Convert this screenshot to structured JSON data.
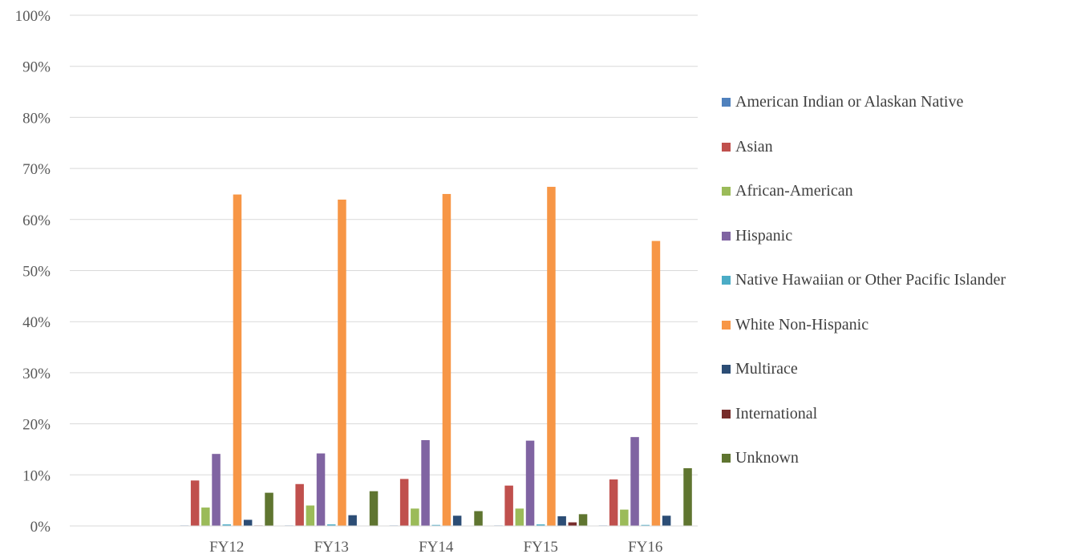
{
  "chart_data": {
    "type": "bar",
    "categories": [
      "",
      "FY12",
      "FY13",
      "FY14",
      "FY15",
      "FY16"
    ],
    "y_ticks": [
      "0%",
      "10%",
      "20%",
      "30%",
      "40%",
      "50%",
      "60%",
      "70%",
      "80%",
      "90%",
      "100%"
    ],
    "ylim": [
      0,
      100
    ],
    "grid": true,
    "legend_position": "right",
    "series": [
      {
        "name": "American Indian or Alaskan Native",
        "color": "#4F81BD",
        "values": [
          null,
          0.1,
          0.1,
          0.1,
          0.1,
          0.1
        ]
      },
      {
        "name": "Asian",
        "color": "#C0504D",
        "values": [
          null,
          8.9,
          8.2,
          9.2,
          7.9,
          9.1
        ]
      },
      {
        "name": "African-American",
        "color": "#9BBB59",
        "values": [
          null,
          3.6,
          4.0,
          3.4,
          3.4,
          3.2
        ]
      },
      {
        "name": "Hispanic",
        "color": "#8064A2",
        "values": [
          null,
          14.1,
          14.2,
          16.8,
          16.7,
          17.4
        ]
      },
      {
        "name": "Native Hawaiian or Other Pacific Islander",
        "color": "#4BACC6",
        "values": [
          null,
          0.3,
          0.3,
          0.2,
          0.3,
          0.2
        ]
      },
      {
        "name": "White Non-Hispanic",
        "color": "#F79646",
        "values": [
          null,
          64.9,
          63.9,
          65.0,
          66.4,
          55.8
        ]
      },
      {
        "name": "Multirace",
        "color": "#2C4D75",
        "values": [
          null,
          1.2,
          2.1,
          2.0,
          1.9,
          2.0
        ]
      },
      {
        "name": "International",
        "color": "#772C2A",
        "values": [
          null,
          0.1,
          0.0,
          0.0,
          0.7,
          0.0
        ]
      },
      {
        "name": "Unknown",
        "color": "#5F7530",
        "values": [
          null,
          6.5,
          6.8,
          2.9,
          2.3,
          11.3
        ]
      }
    ]
  }
}
